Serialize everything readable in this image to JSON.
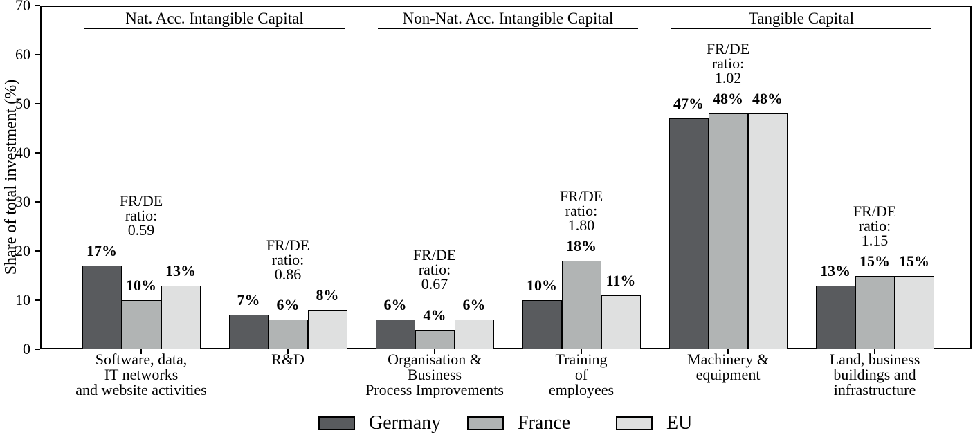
{
  "chart_data": {
    "type": "bar",
    "title": "",
    "ylabel": "Share of total investment (%)",
    "xlabel": "",
    "ylim": [
      0,
      70
    ],
    "yticks": [
      0,
      10,
      20,
      30,
      40,
      50,
      60,
      70
    ],
    "grid": false,
    "legend_position": "bottom",
    "value_label_suffix": "%",
    "sections": [
      {
        "label": "Nat. Acc. Intangible Capital",
        "group_indexes": [
          0,
          1
        ]
      },
      {
        "label": "Non-Nat. Acc. Intangible Capital",
        "group_indexes": [
          2,
          3
        ]
      },
      {
        "label": "Tangible Capital",
        "group_indexes": [
          4,
          5
        ]
      }
    ],
    "categories": [
      {
        "label_lines": [
          "Software, data,",
          "IT networks",
          "and website activities"
        ],
        "ratio_lines": [
          "FR/DE",
          "ratio:",
          "0.59"
        ]
      },
      {
        "label_lines": [
          "R&D"
        ],
        "ratio_lines": [
          "FR/DE",
          "ratio:",
          "0.86"
        ]
      },
      {
        "label_lines": [
          "Organisation &",
          "Business",
          "Process Improvements"
        ],
        "ratio_lines": [
          "FR/DE",
          "ratio:",
          "0.67"
        ]
      },
      {
        "label_lines": [
          "Training",
          "of",
          "employees"
        ],
        "ratio_lines": [
          "FR/DE",
          "ratio:",
          "1.80"
        ]
      },
      {
        "label_lines": [
          "Machinery &",
          "equipment"
        ],
        "ratio_lines": [
          "FR/DE",
          "ratio:",
          "1.02"
        ]
      },
      {
        "label_lines": [
          "Land, business",
          "buildings and",
          "infrastructure"
        ],
        "ratio_lines": [
          "FR/DE",
          "ratio:",
          "1.15"
        ]
      }
    ],
    "series": [
      {
        "name": "Germany",
        "color": "#595b5e",
        "values": [
          17,
          7,
          6,
          10,
          47,
          13
        ]
      },
      {
        "name": "France",
        "color": "#b1b4b4",
        "values": [
          10,
          6,
          4,
          18,
          48,
          15
        ]
      },
      {
        "name": "EU",
        "color": "#dfe0e0",
        "values": [
          13,
          8,
          6,
          11,
          48,
          15
        ]
      }
    ],
    "colors": {
      "axis": "#000000",
      "bar_edge": "#000000",
      "background": "#ffffff"
    }
  }
}
